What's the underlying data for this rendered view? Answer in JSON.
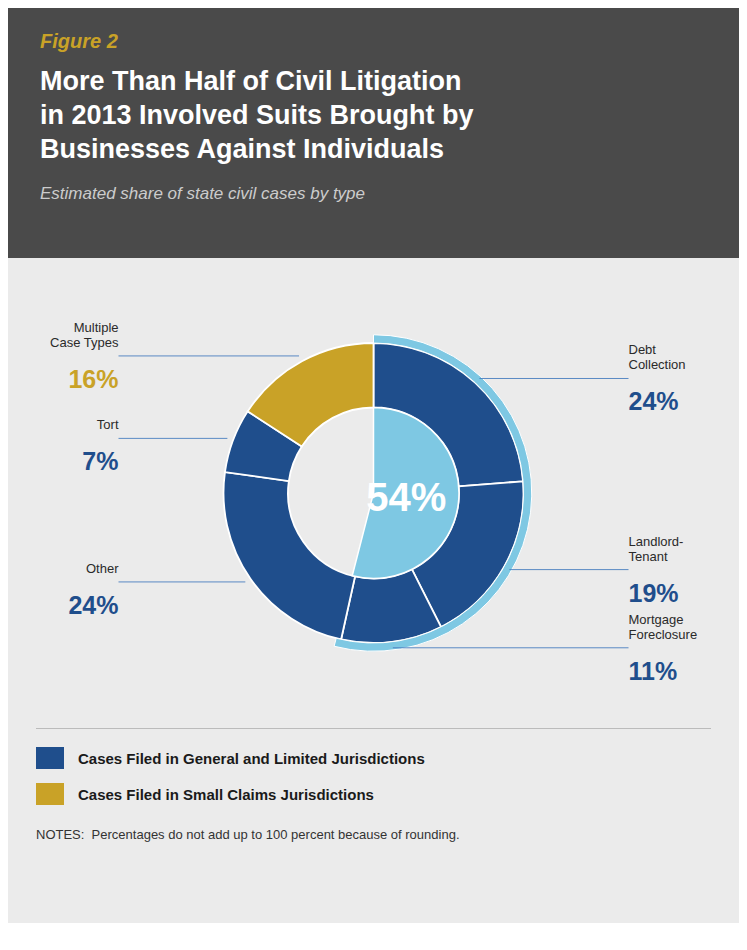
{
  "chart_data": {
    "type": "pie",
    "title": "More Than Half of Civil Litigation\nin 2013 Involved Suits Brought by\nBusinesses Against Individuals",
    "subtitle": "Estimated share of state civil cases by type",
    "categories": [
      "Debt\nCollection",
      "Landlord-\nTenant",
      "Mortgage\nForeclosure",
      "Other",
      "Tort",
      "Multiple\nCase Types"
    ],
    "values": [
      24,
      19,
      11,
      24,
      7,
      16
    ],
    "value_labels": [
      "24%",
      "19%",
      "11%",
      "24%",
      "7%",
      "16%"
    ],
    "colors": [
      "#1f4e8c",
      "#1f4e8c",
      "#1f4e8c",
      "#1f4e8c",
      "#1f4e8c",
      "#c9a227"
    ],
    "data_labels": true,
    "annotations": [
      {
        "text": "Figure 2"
      },
      {
        "text": "54%",
        "value": 54,
        "color": "#7ec8e3"
      },
      {
        "text": "Cases Filed in General and Limited Jurisdictions",
        "color": "#1f4e8c"
      },
      {
        "text": "Cases Filed in Small Claims Jurisdictions",
        "color": "#c9a227"
      },
      {
        "text": "NOTES:  Percentages do not add up to 100 percent because of rounding."
      }
    ]
  }
}
